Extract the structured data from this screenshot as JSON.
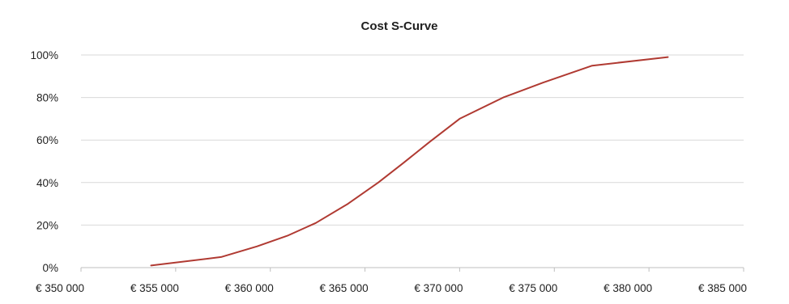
{
  "chart_data": {
    "type": "line",
    "title": "Cost S-Curve",
    "xlabel": "",
    "ylabel": "",
    "xlim": [
      350000,
      385000
    ],
    "ylim": [
      0,
      100
    ],
    "x_ticks": [
      350000,
      355000,
      360000,
      365000,
      370000,
      375000,
      380000,
      385000
    ],
    "x_tick_labels": [
      "€ 350 000",
      "€ 355 000",
      "€ 360 000",
      "€ 365 000",
      "€ 370 000",
      "€ 375 000",
      "€ 380 000",
      "€ 385 000"
    ],
    "y_ticks": [
      0,
      20,
      40,
      60,
      80,
      100
    ],
    "y_tick_labels": [
      "0%",
      "20%",
      "40%",
      "60%",
      "80%",
      "100%"
    ],
    "grid": "horizontal",
    "legend": "none",
    "colors": {
      "series": "#b03a32",
      "grid": "#d9d9d9",
      "axis": "#bfbfbf",
      "text": "#1f1f1f"
    },
    "series": [
      {
        "x": [
          353700,
          357400,
          359300,
          360900,
          362400,
          364100,
          365700,
          367000,
          368400,
          370000,
          372300,
          374400,
          377000,
          381000
        ],
        "values": [
          1,
          5,
          10,
          15,
          21,
          30,
          40,
          49,
          59,
          70,
          80,
          87,
          95,
          99
        ]
      }
    ]
  }
}
